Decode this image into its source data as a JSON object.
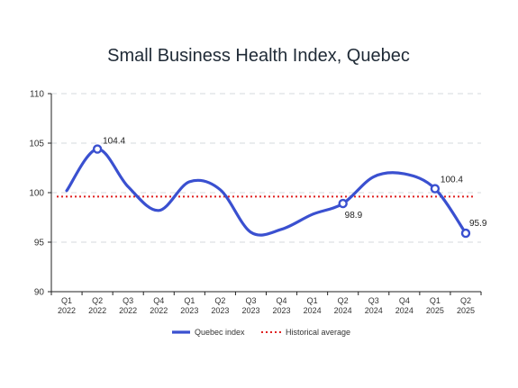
{
  "chart_data": {
    "type": "line",
    "title": "Small Business Health Index, Quebec",
    "xlabel": "",
    "ylabel": "",
    "ylim": [
      90,
      110
    ],
    "yticks": [
      90,
      95,
      100,
      105,
      110
    ],
    "grid": true,
    "legend_position": "bottom",
    "categories": [
      [
        "Q1",
        "2022"
      ],
      [
        "Q2",
        "2022"
      ],
      [
        "Q3",
        "2022"
      ],
      [
        "Q4",
        "2022"
      ],
      [
        "Q1",
        "2023"
      ],
      [
        "Q2",
        "2023"
      ],
      [
        "Q3",
        "2023"
      ],
      [
        "Q4",
        "2023"
      ],
      [
        "Q1",
        "2024"
      ],
      [
        "Q2",
        "2024"
      ],
      [
        "Q3",
        "2024"
      ],
      [
        "Q4",
        "2024"
      ],
      [
        "Q1",
        "2025"
      ],
      [
        "Q2",
        "2025"
      ]
    ],
    "series": [
      {
        "name": "Quebec index",
        "color": "#3a50d0",
        "values": [
          100.2,
          104.4,
          100.6,
          98.2,
          101.1,
          100.3,
          96.0,
          96.3,
          97.8,
          98.9,
          101.6,
          101.9,
          100.4,
          95.9
        ]
      }
    ],
    "reference_lines": [
      {
        "name": "Historical average",
        "value": 99.6,
        "color": "#e02020",
        "style": "dotted"
      }
    ],
    "annotations": [
      {
        "index": 1,
        "label": "104.4",
        "marker": true
      },
      {
        "index": 9,
        "label": "98.9",
        "marker": true
      },
      {
        "index": 12,
        "label": "100.4",
        "marker": true
      },
      {
        "index": 13,
        "label": "95.9",
        "marker": true
      }
    ]
  }
}
